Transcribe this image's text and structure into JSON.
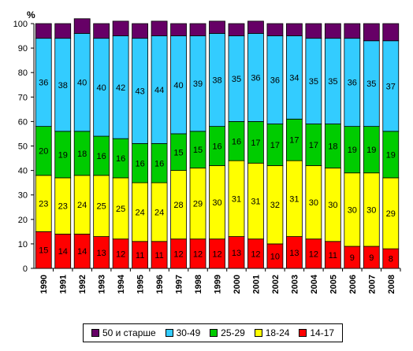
{
  "chart_data": {
    "type": "stacked_bar",
    "title": "",
    "ylabel": "%",
    "xlabel": "",
    "ylim": [
      0,
      100
    ],
    "yticks": [
      0,
      10,
      20,
      30,
      40,
      50,
      60,
      70,
      80,
      90,
      100
    ],
    "categories": [
      "1990",
      "1991",
      "1992",
      "1993",
      "1994",
      "1995",
      "1996",
      "1997",
      "1998",
      "1999",
      "2000",
      "2001",
      "2002",
      "2003",
      "2004",
      "2005",
      "2006",
      "2007",
      "2008"
    ],
    "series": [
      {
        "name": "14-17",
        "color": "#ff0000",
        "values": [
          15,
          14,
          14,
          13,
          12,
          11,
          11,
          12,
          12,
          12,
          13,
          12,
          10,
          13,
          12,
          11,
          9,
          9,
          8
        ],
        "labels": [
          "15",
          "14",
          "14",
          "13",
          "12",
          "11",
          "11",
          "12",
          "12",
          "12",
          "13",
          "12",
          "10",
          "13",
          "12",
          "11",
          "9",
          "9",
          "8"
        ]
      },
      {
        "name": "18-24",
        "color": "#ffff00",
        "values": [
          23,
          23,
          24,
          25,
          25,
          24,
          24,
          28,
          29,
          30,
          31,
          31,
          32,
          31,
          30,
          30,
          30,
          30,
          29
        ],
        "labels": [
          "23",
          "23",
          "24",
          "25",
          "25",
          "24",
          "24",
          "28",
          "29",
          "30",
          "31",
          "31",
          "32",
          "31",
          "30",
          "30",
          "30",
          "30",
          "29"
        ]
      },
      {
        "name": "25-29",
        "color": "#00cc00",
        "values": [
          20,
          19,
          18,
          16,
          16,
          16,
          16,
          15,
          15,
          16,
          16,
          17,
          17,
          17,
          17,
          18,
          19,
          19,
          19
        ],
        "labels": [
          "20",
          "19",
          "18",
          "16",
          "16",
          "16",
          "16",
          "15",
          "15",
          "16",
          "16",
          "17",
          "17",
          "17",
          "17",
          "18",
          "19",
          "19",
          "19"
        ]
      },
      {
        "name": "30-49",
        "color": "#33ccff",
        "values": [
          36,
          38,
          40,
          40,
          42,
          43,
          44,
          40,
          39,
          38,
          35,
          36,
          36,
          34,
          35,
          35,
          36,
          35,
          37
        ],
        "labels": [
          "36",
          "38",
          "40",
          "40",
          "42",
          "43",
          "44",
          "40",
          "39",
          "38",
          "35",
          "36",
          "36",
          "34",
          "35",
          "35",
          "36",
          "35",
          "37"
        ]
      },
      {
        "name": "50 и старше",
        "color": "#660066",
        "values": [
          6,
          6,
          6,
          6,
          6,
          6,
          6,
          5,
          5,
          5,
          5,
          5,
          5,
          5,
          6,
          6,
          6,
          7,
          7
        ],
        "labels": [
          "",
          "",
          "",
          "",
          "",
          "",
          "",
          "",
          "",
          "",
          "",
          "",
          "",
          "",
          "",
          "",
          "",
          "",
          ""
        ]
      }
    ],
    "legend": {
      "position": "bottom",
      "order": [
        "50 и старше",
        "30-49",
        "25-29",
        "18-24",
        "14-17"
      ]
    },
    "grid": false
  }
}
